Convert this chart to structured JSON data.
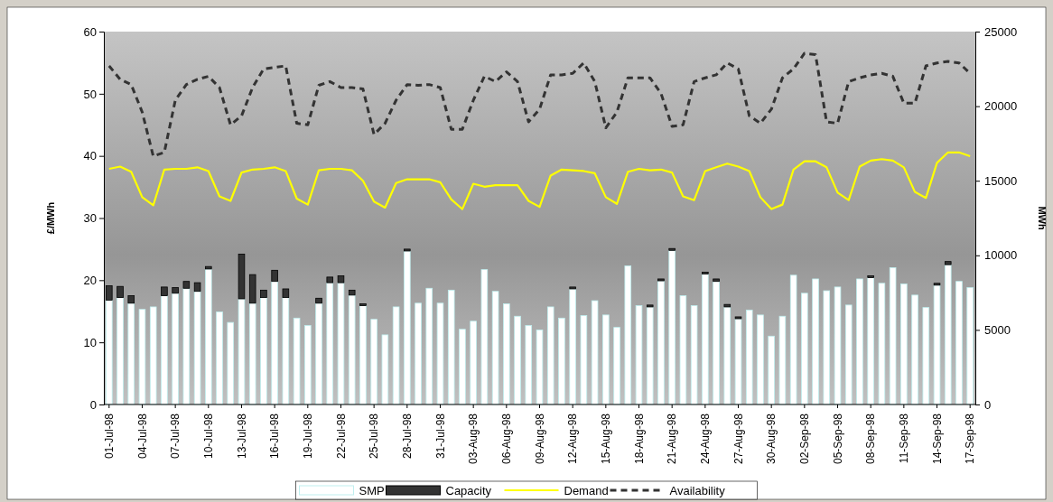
{
  "chart_data": {
    "type": "bar",
    "stacked": true,
    "ylabel": "£/MWh",
    "y2label": "MWh",
    "ylim": [
      0,
      60
    ],
    "yticks": [
      0,
      10,
      20,
      30,
      40,
      50,
      60
    ],
    "y2lim": [
      0,
      25000
    ],
    "y2ticks": [
      0,
      5000,
      10000,
      15000,
      20000,
      25000
    ],
    "legend": "bottom",
    "grid": false,
    "categories": [
      "01-Jul-98",
      null,
      null,
      "04-Jul-98",
      null,
      null,
      "07-Jul-98",
      null,
      null,
      "10-Jul-98",
      null,
      null,
      "13-Jul-98",
      null,
      null,
      "16-Jul-98",
      null,
      null,
      "19-Jul-98",
      null,
      null,
      "22-Jul-98",
      null,
      null,
      "25-Jul-98",
      null,
      null,
      "28-Jul-98",
      null,
      null,
      "31-Jul-98",
      null,
      null,
      "03-Aug-98",
      null,
      null,
      "06-Aug-98",
      null,
      null,
      "09-Aug-98",
      null,
      null,
      "12-Aug-98",
      null,
      null,
      "15-Aug-98",
      null,
      null,
      "18-Aug-98",
      null,
      null,
      "21-Aug-98",
      null,
      null,
      "24-Aug-98",
      null,
      null,
      "27-Aug-98",
      null,
      null,
      "30-Aug-98",
      null,
      null,
      "02-Sep-98",
      null,
      null,
      "05-Sep-98",
      null,
      null,
      "08-Sep-98",
      null,
      null,
      "11-Sep-98",
      null,
      null,
      "14-Sep-98",
      null,
      null,
      "17-Sep-98"
    ],
    "series": [
      {
        "name": "SMP",
        "color": "#ffffff",
        "values": [
          16.8,
          17.2,
          16.3,
          15.3,
          15.7,
          17.5,
          17.9,
          18.7,
          18.2,
          21.8,
          14.9,
          13.2,
          17.0,
          16.3,
          17.2,
          19.8,
          17.2,
          13.9,
          12.7,
          16.3,
          19.6,
          19.6,
          17.6,
          15.9,
          13.7,
          11.2,
          15.7,
          24.7,
          16.3,
          18.7,
          16.3,
          18.4,
          12.1,
          13.4,
          21.7,
          18.2,
          16.2,
          14.2,
          12.7,
          12.0,
          15.7,
          13.9,
          18.6,
          14.3,
          16.7,
          14.4,
          12.4,
          22.3,
          15.9,
          15.7,
          19.9,
          24.8,
          17.5,
          15.9,
          21.0,
          19.8,
          15.7,
          13.8,
          15.2,
          14.4,
          11.0,
          14.2,
          20.8,
          17.9,
          20.2,
          18.3,
          18.9,
          16.0,
          20.2,
          20.4,
          19.5,
          22.0,
          19.4,
          17.6,
          15.6,
          19.2,
          22.5,
          19.8,
          18.8
        ]
      },
      {
        "name": "Capacity",
        "color": "#333333",
        "values": [
          2.3,
          1.8,
          1.2,
          null,
          null,
          1.4,
          0.9,
          1.1,
          1.4,
          0.4,
          null,
          null,
          7.2,
          4.6,
          1.2,
          1.8,
          1.4,
          null,
          null,
          0.8,
          0.9,
          1.1,
          0.8,
          0.3,
          null,
          null,
          null,
          0.3,
          null,
          null,
          null,
          null,
          null,
          null,
          null,
          null,
          null,
          null,
          null,
          null,
          null,
          null,
          0.3,
          null,
          null,
          null,
          null,
          null,
          null,
          0.3,
          0.3,
          0.3,
          null,
          null,
          0.3,
          0.4,
          0.4,
          0.3,
          null,
          null,
          null,
          null,
          null,
          null,
          null,
          null,
          null,
          null,
          null,
          0.3,
          null,
          null,
          null,
          null,
          null,
          0.3,
          0.5,
          null,
          null
        ]
      },
      {
        "name": "Demand",
        "type": "line",
        "axis": "y2",
        "color": "#ffff00",
        "line_style": "solid",
        "values": [
          15800,
          15950,
          15600,
          13900,
          13350,
          15750,
          15800,
          15800,
          15900,
          15650,
          13950,
          13650,
          15550,
          15750,
          15800,
          15900,
          15650,
          13800,
          13400,
          15700,
          15800,
          15800,
          15700,
          15000,
          13600,
          13200,
          14850,
          15100,
          15100,
          15100,
          14900,
          13750,
          13100,
          14800,
          14600,
          14700,
          14700,
          14700,
          13650,
          13250,
          15350,
          15750,
          15700,
          15650,
          15500,
          13900,
          13450,
          15600,
          15800,
          15700,
          15750,
          15550,
          13950,
          13700,
          15650,
          15900,
          16150,
          15950,
          15650,
          13900,
          13100,
          13400,
          15750,
          16300,
          16300,
          15900,
          14200,
          13700,
          15950,
          16350,
          16450,
          16350,
          15900,
          14250,
          13850,
          16200,
          16900,
          16900,
          16650
        ]
      },
      {
        "name": "Availability",
        "type": "line",
        "axis": "y2",
        "color": "#333333",
        "line_style": "dashed",
        "values": [
          22700,
          21800,
          21450,
          19600,
          16650,
          16900,
          20400,
          21450,
          21800,
          22000,
          21250,
          18750,
          19350,
          21250,
          22500,
          22600,
          22700,
          18850,
          18750,
          21400,
          21650,
          21250,
          21250,
          21150,
          18100,
          18850,
          20400,
          21450,
          21400,
          21450,
          21250,
          18450,
          18450,
          20400,
          22000,
          21650,
          22300,
          21650,
          18950,
          19800,
          22100,
          22100,
          22200,
          22900,
          21650,
          18550,
          19600,
          21900,
          21900,
          21900,
          20850,
          18650,
          18750,
          21650,
          21900,
          22100,
          22900,
          22500,
          19350,
          18850,
          19800,
          21900,
          22500,
          23550,
          23450,
          18950,
          18850,
          21650,
          21900,
          22100,
          22200,
          22000,
          20200,
          20200,
          22700,
          22900,
          23000,
          22900,
          22200
        ]
      }
    ]
  }
}
